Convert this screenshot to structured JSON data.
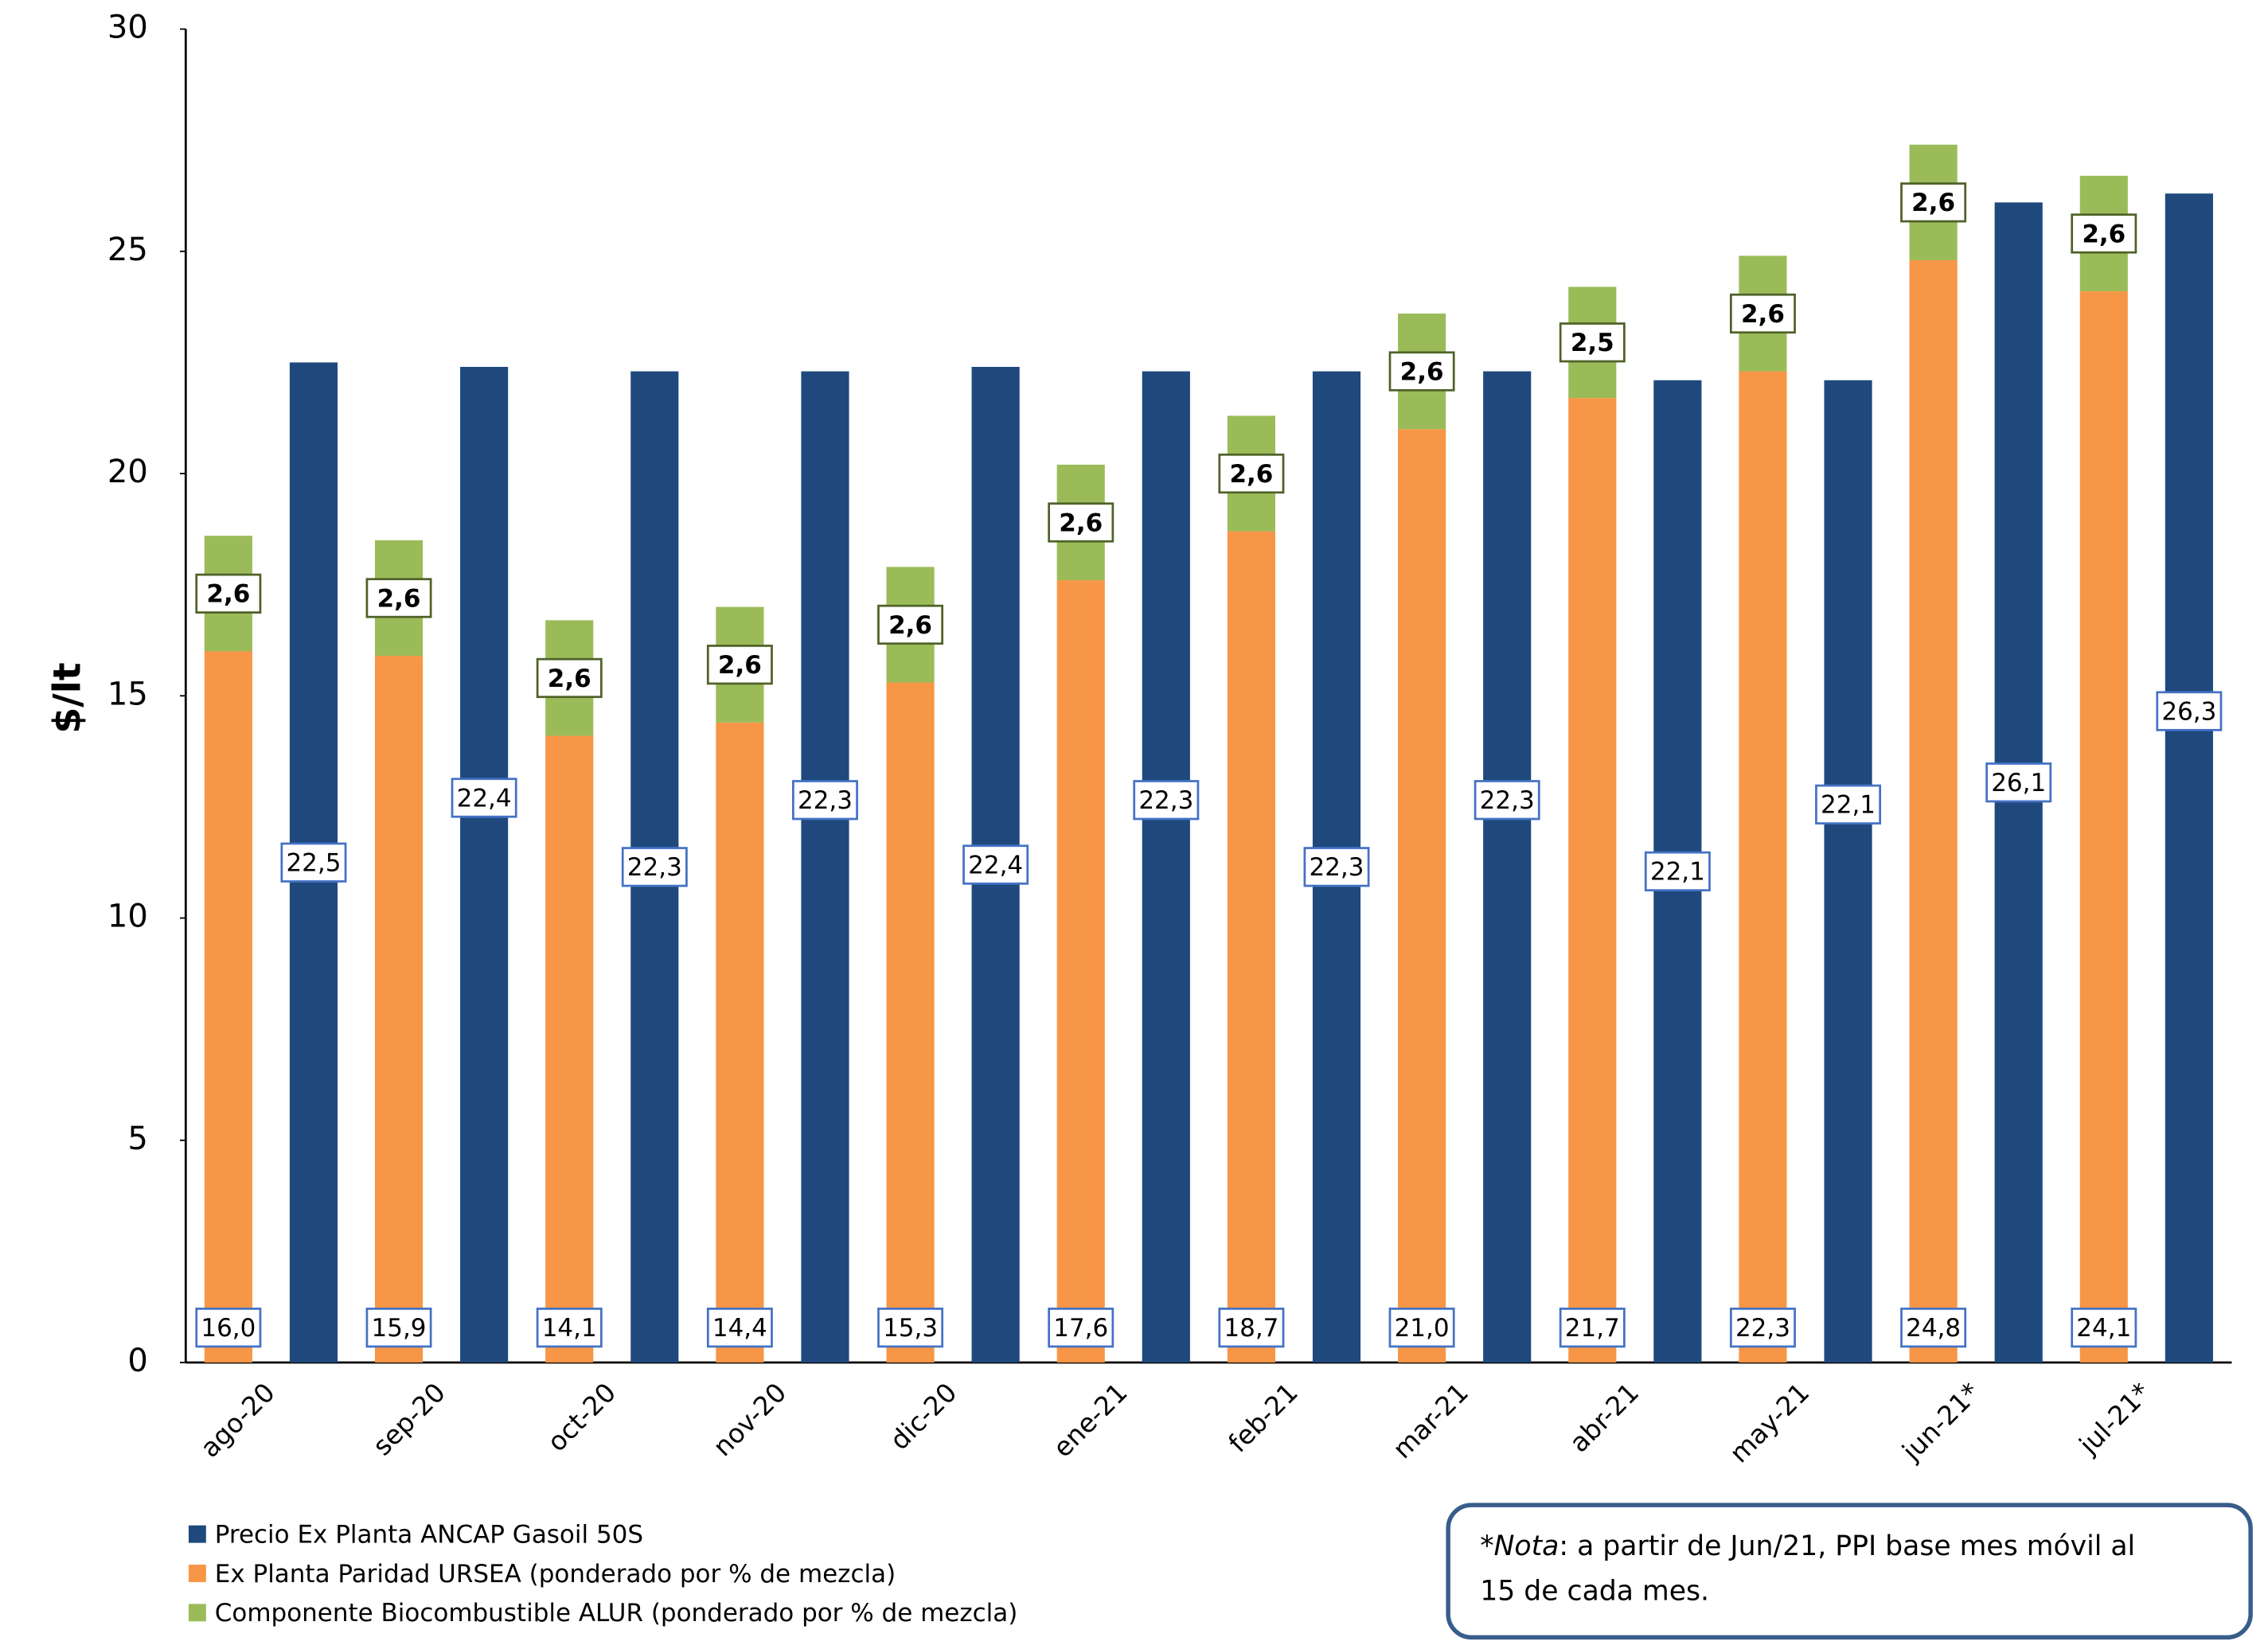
{
  "chart_data": {
    "type": "bar",
    "y_axis_label": "$/lt",
    "categories": [
      "ago-20",
      "sep-20",
      "oct-20",
      "nov-20",
      "dic-20",
      "ene-21",
      "feb-21",
      "mar-21",
      "abr-21",
      "may-21",
      "jun-21*",
      "jul-21*"
    ],
    "series": [
      {
        "name": "Precio Ex Planta ANCAP Gasoil 50S",
        "color": "#1f497d",
        "values": [
          22.5,
          22.4,
          22.3,
          22.3,
          22.4,
          22.3,
          22.3,
          22.3,
          22.1,
          22.1,
          26.1,
          26.3
        ],
        "value_labels": [
          "22,5",
          "22,4",
          "22,3",
          "22,3",
          "22,4",
          "22,3",
          "22,3",
          "22,3",
          "22,1",
          "22,1",
          "26,1",
          "26,3"
        ]
      },
      {
        "name": "Ex Planta Paridad URSEA (ponderado por % de mezcla)",
        "color": "#f79646",
        "values": [
          16.0,
          15.9,
          14.1,
          14.4,
          15.3,
          17.6,
          18.7,
          21.0,
          21.7,
          22.3,
          24.8,
          24.1
        ],
        "value_labels": [
          "16,0",
          "15,9",
          "14,1",
          "14,4",
          "15,3",
          "17,6",
          "18,7",
          "21,0",
          "21,7",
          "22,3",
          "24,8",
          "24,1"
        ]
      },
      {
        "name": "Componente Biocombustible ALUR (ponderado por % de mezcla)",
        "color": "#9bbb59",
        "values": [
          2.6,
          2.6,
          2.6,
          2.6,
          2.6,
          2.6,
          2.6,
          2.6,
          2.5,
          2.6,
          2.6,
          2.6
        ],
        "value_labels": [
          "2,6",
          "2,6",
          "2,6",
          "2,6",
          "2,6",
          "2,6",
          "2,6",
          "2,6",
          "2,5",
          "2,6",
          "2,6",
          "2,6"
        ]
      }
    ],
    "ylim": [
      0,
      30
    ],
    "yticks": [
      0,
      5,
      10,
      15,
      20,
      25,
      30
    ],
    "grid": false,
    "legend": "bottom-left",
    "note_lead": "*Nota",
    "note_lines": [
      ": a partir de Jun/21,  PPI base  mes móvil al",
      "15 de cada mes."
    ]
  }
}
